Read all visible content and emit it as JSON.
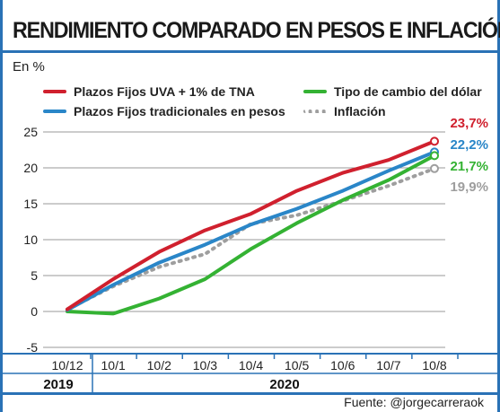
{
  "title": "RENDIMIENTO COMPARADO EN PESOS E INFLACIÓN",
  "unit_label": "En %",
  "source": "Fuente: @jorgecarreraok",
  "legend": [
    {
      "label": "Plazos Fijos UVA + 1% de TNA",
      "color": "#d0202e",
      "style": "solid"
    },
    {
      "label": "Tipo de cambio del dólar",
      "color": "#34b233",
      "style": "solid"
    },
    {
      "label": "Plazos Fijos tradicionales en pesos",
      "color": "#2a86c8",
      "style": "solid"
    },
    {
      "label": "Inflación",
      "color": "#9e9e9e",
      "style": "dotted"
    }
  ],
  "chart_data": {
    "type": "line",
    "title": "RENDIMIENTO COMPARADO EN PESOS E INFLACIÓN",
    "ylabel": "En %",
    "categories": [
      "10/12",
      "10/1",
      "10/2",
      "10/3",
      "10/4",
      "10/5",
      "10/6",
      "10/7",
      "10/8"
    ],
    "year_groups": [
      {
        "label": "2019",
        "from": 0,
        "to": 0
      },
      {
        "label": "2020",
        "from": 1,
        "to": 8
      }
    ],
    "ylim": [
      -5,
      25
    ],
    "yticks": [
      -5,
      0,
      5,
      10,
      15,
      20,
      25
    ],
    "grid": true,
    "series": [
      {
        "name": "Plazos Fijos UVA + 1% de TNA",
        "color": "#d0202e",
        "dash": false,
        "values": [
          0.3,
          4.5,
          8.3,
          11.3,
          13.6,
          16.8,
          19.3,
          21.1,
          23.7
        ],
        "end_label": "23,7%"
      },
      {
        "name": "Plazos Fijos tradicionales en pesos",
        "color": "#2a86c8",
        "dash": false,
        "values": [
          0.2,
          3.7,
          6.8,
          9.3,
          12.1,
          14.3,
          16.8,
          19.6,
          22.2
        ],
        "end_label": "22,2%"
      },
      {
        "name": "Tipo de cambio del dólar",
        "color": "#34b233",
        "dash": false,
        "values": [
          0.0,
          -0.3,
          1.8,
          4.5,
          8.7,
          12.3,
          15.5,
          18.3,
          21.7
        ],
        "end_label": "21,7%"
      },
      {
        "name": "Inflación",
        "color": "#9e9e9e",
        "dash": true,
        "values": [
          0.3,
          3.5,
          6.2,
          8.0,
          12.2,
          13.4,
          15.4,
          17.5,
          19.9
        ],
        "end_label": "19,9%"
      }
    ]
  }
}
